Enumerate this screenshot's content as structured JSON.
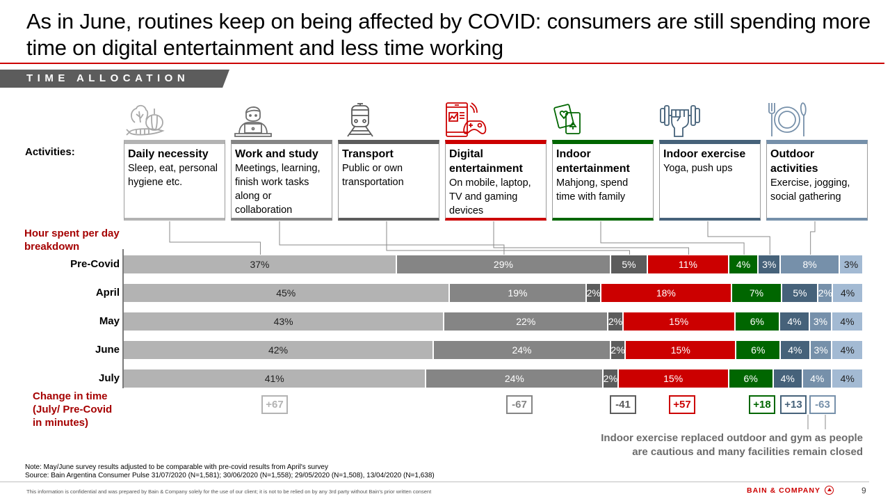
{
  "header": {
    "title": "As in June, routines keep on being affected by COVID: consumers are still spending more time on digital entertainment and less time working",
    "section_tag": "TIME ALLOCATION"
  },
  "labels": {
    "activities": "Activities:",
    "hours_line1": "Hour spent per day",
    "hours_line2": "breakdown",
    "change_line1": "Change in time",
    "change_line2": "(July/ Pre-Covid",
    "change_line3": "in minutes)"
  },
  "activities": [
    {
      "key": "daily",
      "title": "Daily necessity",
      "desc": "Sleep, eat, personal hygiene etc.",
      "icon": "vegetables-icon",
      "color": "#b3b3b3"
    },
    {
      "key": "work",
      "title": "Work and study",
      "desc": "Meetings, learning, finish work tasks along or collaboration",
      "icon": "person-laptop-icon",
      "color": "#858585"
    },
    {
      "key": "transport",
      "title": "Transport",
      "desc": "Public or own transportation",
      "icon": "train-icon",
      "color": "#5c5c5c"
    },
    {
      "key": "digital",
      "title": "Digital entertainment",
      "desc": "On mobile, laptop, TV and gaming devices",
      "icon": "phone-gamepad-icon",
      "color": "#cc0000"
    },
    {
      "key": "indoor_ent",
      "title": "Indoor entertainment",
      "desc": "Mahjong, spend time with family",
      "icon": "playing-cards-icon",
      "color": "#006600"
    },
    {
      "key": "indoor_ex",
      "title": "Indoor exercise",
      "desc": "Yoga, push ups",
      "icon": "dumbbell-fist-icon",
      "color": "#46627a"
    },
    {
      "key": "outdoor",
      "title": "Outdoor activities",
      "desc": "Exercise, jogging, social gathering",
      "icon": "plate-cutlery-icon",
      "color": "#7690aa"
    }
  ],
  "chart_data": {
    "type": "bar",
    "orientation": "horizontal",
    "stacked": true,
    "normalized": true,
    "title": "Hour spent per day breakdown",
    "xlabel": "",
    "ylabel": "",
    "categories": [
      "Pre-Covid",
      "April",
      "May",
      "June",
      "July"
    ],
    "series": [
      {
        "name": "Daily necessity",
        "color": "#b3b3b3",
        "label_color": "#222222",
        "values": [
          37,
          45,
          43,
          42,
          41
        ]
      },
      {
        "name": "Work and study",
        "color": "#858585",
        "label_color": "#ffffff",
        "values": [
          29,
          19,
          22,
          24,
          24
        ]
      },
      {
        "name": "Transport",
        "color": "#5c5c5c",
        "label_color": "#ffffff",
        "values": [
          5,
          2,
          2,
          2,
          2
        ]
      },
      {
        "name": "Digital entertainment",
        "color": "#cc0000",
        "label_color": "#ffffff",
        "values": [
          11,
          18,
          15,
          15,
          15
        ]
      },
      {
        "name": "Indoor entertainment",
        "color": "#006600",
        "label_color": "#ffffff",
        "values": [
          4,
          7,
          6,
          6,
          6
        ]
      },
      {
        "name": "Indoor exercise",
        "color": "#46627a",
        "label_color": "#ffffff",
        "values": [
          3,
          5,
          4,
          4,
          4
        ]
      },
      {
        "name": "Outdoor activities",
        "color": "#7690aa",
        "label_color": "#ffffff",
        "values": [
          8,
          2,
          3,
          3,
          4
        ]
      },
      {
        "name": "Other",
        "color": "#a3bad3",
        "label_color": "#222222",
        "values": [
          3,
          4,
          4,
          4,
          4
        ]
      }
    ],
    "value_suffix": "%",
    "change_july_vs_precovid_minutes": [
      {
        "series": "Daily necessity",
        "value": "+67",
        "color": "#b3b3b3"
      },
      {
        "series": "Work and study",
        "value": "-67",
        "color": "#858585"
      },
      {
        "series": "Transport",
        "value": "-41",
        "color": "#5c5c5c"
      },
      {
        "series": "Digital entertainment",
        "value": "+57",
        "color": "#cc0000"
      },
      {
        "series": "Indoor entertainment",
        "value": "+18",
        "color": "#006600"
      },
      {
        "series": "Indoor exercise",
        "value": "+13",
        "color": "#46627a"
      },
      {
        "series": "Outdoor activities",
        "value": "-63",
        "color": "#7690aa"
      }
    ],
    "annotation": "Indoor exercise replaced outdoor and gym as people are cautious and many facilities remain closed",
    "legend": "none"
  },
  "footer": {
    "note": "Note: May/June survey results adjusted to be comparable with pre-covid results from April's survey",
    "source": "Source: Bain Argentina Consumer Pulse 31/07/2020 (N=1,581); 30/06/2020 (N=1,558); 29/05/2020 (N=1,508), 13/04/2020 (N=1,638)",
    "disclaimer": "This information is confidential and was prepared by Bain & Company solely for the use of our client; it is not to be relied on by any 3rd party without Bain's prior written consent",
    "brand": "BAIN & COMPANY",
    "page_number": "9"
  }
}
